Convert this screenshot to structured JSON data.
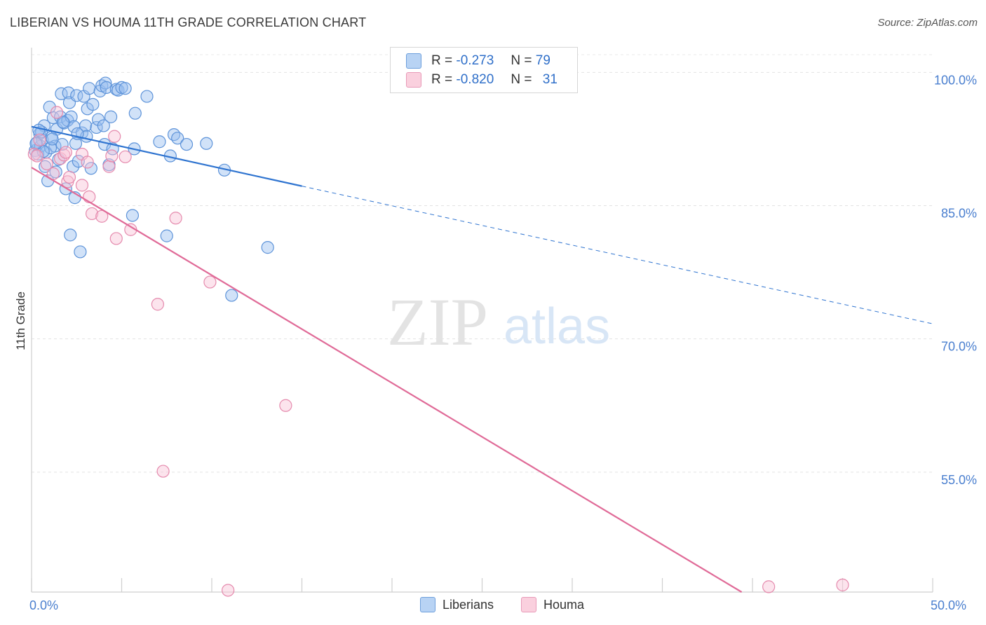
{
  "title": "LIBERIAN VS HOUMA 11TH GRADE CORRELATION CHART",
  "source": "Source: ZipAtlas.com",
  "watermark": {
    "zip": "ZIP",
    "atlas": "atlas"
  },
  "legend": {
    "rows": [
      {
        "r_label": "R =",
        "r_value": "-0.273",
        "n_label": "N =",
        "n_value": "79",
        "color": "#a9c8f0",
        "border": "#5d93d9"
      },
      {
        "r_label": "R =",
        "r_value": "-0.820",
        "n_label": "N =",
        "n_value": "31",
        "color": "#f8c4d6",
        "border": "#e58aad"
      }
    ]
  },
  "bottom_legend": [
    {
      "label": "Liberians",
      "color": "#a9c8f0",
      "border": "#5d93d9"
    },
    {
      "label": "Houma",
      "color": "#f8c4d6",
      "border": "#e58aad"
    }
  ],
  "chart_data": {
    "type": "scatter",
    "title": "LIBERIAN VS HOUMA 11TH GRADE CORRELATION CHART",
    "xlabel": "",
    "ylabel": "11th Grade",
    "xlim": [
      0,
      50
    ],
    "ylim": [
      41.5,
      102
    ],
    "x_tick_labels": [
      {
        "value": 0,
        "label": "0.0%"
      },
      {
        "value": 50,
        "label": "50.0%"
      }
    ],
    "y_ticks": [
      {
        "value": 100,
        "label": "100.0%"
      },
      {
        "value": 85,
        "label": "85.0%"
      },
      {
        "value": 70,
        "label": "70.0%"
      },
      {
        "value": 55,
        "label": "55.0%"
      }
    ],
    "x_minor_ticks": [
      0,
      5,
      10,
      15,
      20,
      25,
      30,
      35,
      40,
      45,
      50
    ],
    "series": [
      {
        "name": "Liberians",
        "color": "#5d93d9",
        "fill": "rgba(154,191,240,0.45)",
        "trend": {
          "x0": 0,
          "y0": 93.9,
          "x1": 15,
          "y1": 87.2,
          "dash_to_x": 50,
          "dash_to_y": 71.7,
          "color": "#2f74d0"
        },
        "points": [
          [
            0.2,
            91.2
          ],
          [
            0.3,
            92.1
          ],
          [
            0.35,
            90.8
          ],
          [
            0.45,
            93.1
          ],
          [
            0.5,
            91.7
          ],
          [
            0.6,
            92.4
          ],
          [
            0.7,
            94.0
          ],
          [
            0.75,
            89.4
          ],
          [
            0.8,
            91.0
          ],
          [
            0.9,
            87.8
          ],
          [
            1.0,
            96.1
          ],
          [
            1.1,
            92.7
          ],
          [
            1.2,
            94.9
          ],
          [
            1.3,
            91.7
          ],
          [
            1.35,
            88.8
          ],
          [
            1.4,
            93.6
          ],
          [
            1.5,
            90.2
          ],
          [
            1.6,
            95.0
          ],
          [
            1.65,
            97.6
          ],
          [
            1.7,
            91.9
          ],
          [
            1.8,
            94.3
          ],
          [
            1.9,
            86.9
          ],
          [
            2.0,
            94.6
          ],
          [
            2.05,
            97.7
          ],
          [
            2.1,
            96.6
          ],
          [
            2.15,
            81.7
          ],
          [
            2.2,
            95.0
          ],
          [
            2.3,
            89.4
          ],
          [
            2.35,
            93.9
          ],
          [
            2.4,
            85.9
          ],
          [
            2.45,
            92.0
          ],
          [
            2.5,
            97.4
          ],
          [
            2.6,
            90.0
          ],
          [
            2.7,
            79.8
          ],
          [
            2.8,
            93.2
          ],
          [
            2.9,
            97.3
          ],
          [
            3.0,
            94.0
          ],
          [
            3.05,
            92.8
          ],
          [
            3.1,
            95.9
          ],
          [
            3.2,
            98.2
          ],
          [
            3.3,
            89.2
          ],
          [
            3.4,
            96.4
          ],
          [
            3.6,
            93.8
          ],
          [
            3.7,
            94.7
          ],
          [
            3.8,
            97.9
          ],
          [
            3.9,
            98.5
          ],
          [
            4.0,
            94.0
          ],
          [
            4.05,
            91.9
          ],
          [
            4.1,
            98.8
          ],
          [
            4.15,
            98.3
          ],
          [
            4.3,
            89.6
          ],
          [
            4.4,
            95.0
          ],
          [
            4.5,
            91.4
          ],
          [
            4.7,
            98.1
          ],
          [
            4.8,
            98.0
          ],
          [
            5.0,
            98.3
          ],
          [
            5.2,
            98.2
          ],
          [
            5.6,
            83.9
          ],
          [
            5.7,
            91.4
          ],
          [
            5.75,
            95.4
          ],
          [
            6.4,
            97.3
          ],
          [
            7.1,
            92.2
          ],
          [
            7.5,
            81.6
          ],
          [
            7.7,
            90.6
          ],
          [
            7.9,
            93.0
          ],
          [
            8.1,
            92.6
          ],
          [
            8.6,
            91.9
          ],
          [
            9.7,
            92.0
          ],
          [
            10.7,
            89.0
          ],
          [
            11.1,
            74.9
          ],
          [
            13.1,
            80.3
          ],
          [
            0.55,
            93.3
          ],
          [
            1.05,
            91.5
          ],
          [
            0.65,
            91.1
          ],
          [
            1.75,
            94.4
          ],
          [
            2.55,
            93.1
          ],
          [
            0.4,
            93.5
          ],
          [
            0.25,
            92.0
          ],
          [
            1.15,
            92.5
          ]
        ]
      },
      {
        "name": "Houma",
        "color": "#e58aad",
        "fill": "rgba(248,196,214,0.45)",
        "trend": {
          "x0": 0,
          "y0": 89.3,
          "x1": 39.4,
          "y1": 41.5,
          "color": "#e06b98"
        },
        "points": [
          [
            0.15,
            90.8
          ],
          [
            0.45,
            92.4
          ],
          [
            0.85,
            89.7
          ],
          [
            1.2,
            88.6
          ],
          [
            1.4,
            95.5
          ],
          [
            1.6,
            90.3
          ],
          [
            1.8,
            90.7
          ],
          [
            2.0,
            87.7
          ],
          [
            2.1,
            88.2
          ],
          [
            2.8,
            87.3
          ],
          [
            2.8,
            90.8
          ],
          [
            3.1,
            89.9
          ],
          [
            3.2,
            86.0
          ],
          [
            3.35,
            84.1
          ],
          [
            3.9,
            83.8
          ],
          [
            4.3,
            89.4
          ],
          [
            4.45,
            90.6
          ],
          [
            4.6,
            92.8
          ],
          [
            4.7,
            81.3
          ],
          [
            5.2,
            90.5
          ],
          [
            5.5,
            82.3
          ],
          [
            7.0,
            73.9
          ],
          [
            7.3,
            55.1
          ],
          [
            8.0,
            83.6
          ],
          [
            9.9,
            76.4
          ],
          [
            10.9,
            41.7
          ],
          [
            14.1,
            62.5
          ],
          [
            40.9,
            42.1
          ],
          [
            45.0,
            42.3
          ],
          [
            1.9,
            91.0
          ],
          [
            0.3,
            90.6
          ]
        ]
      }
    ]
  }
}
